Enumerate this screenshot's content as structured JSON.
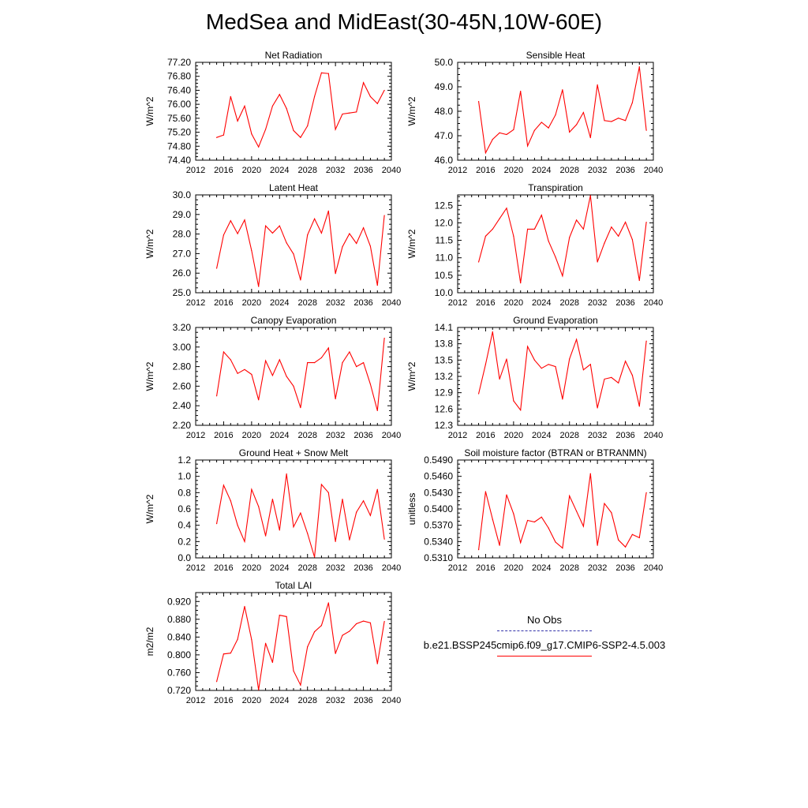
{
  "title": "MedSea and MidEast(30-45N,10W-60E)",
  "colors": {
    "model": "#ff0000",
    "obs": "#3333aa",
    "axis": "#000000"
  },
  "legend": {
    "obs_label": "No Obs",
    "model_label": "b.e21.BSSP245cmip6.f09_g17.CMIP6-SSP2-4.5.003"
  },
  "chart_data": [
    {
      "type": "line",
      "title": "Net Radiation",
      "ylabel": "W/m^2",
      "xlim": [
        2012,
        2040
      ],
      "ylim": [
        74.4,
        77.2
      ],
      "x_ticks": [
        "2012",
        "2016",
        "2020",
        "2024",
        "2028",
        "2032",
        "2036",
        "2040"
      ],
      "y_ticks": [
        "74.40",
        "74.80",
        "75.20",
        "75.60",
        "76.00",
        "76.40",
        "76.80",
        "77.20"
      ],
      "x": [
        2015,
        2016,
        2017,
        2018,
        2019,
        2020,
        2021,
        2022,
        2023,
        2024,
        2025,
        2026,
        2027,
        2028,
        2029,
        2030,
        2031,
        2032,
        2033,
        2034,
        2035,
        2036,
        2037,
        2038,
        2039
      ],
      "values": [
        75.05,
        75.12,
        76.22,
        75.52,
        75.95,
        75.15,
        74.78,
        75.28,
        75.95,
        76.28,
        75.88,
        75.25,
        75.05,
        75.38,
        76.22,
        76.9,
        76.88,
        75.28,
        75.72,
        75.75,
        75.78,
        76.62,
        76.22,
        76.02,
        76.4
      ]
    },
    {
      "type": "line",
      "title": "Sensible Heat",
      "ylabel": "W/m^2",
      "xlim": [
        2012,
        2040
      ],
      "ylim": [
        46.0,
        50.0
      ],
      "x_ticks": [
        "2012",
        "2016",
        "2020",
        "2024",
        "2028",
        "2032",
        "2036",
        "2040"
      ],
      "y_ticks": [
        "46.0",
        "47.0",
        "48.0",
        "49.0",
        "50.0"
      ],
      "x": [
        2015,
        2016,
        2017,
        2018,
        2019,
        2020,
        2021,
        2022,
        2023,
        2024,
        2025,
        2026,
        2027,
        2028,
        2029,
        2030,
        2031,
        2032,
        2033,
        2034,
        2035,
        2036,
        2037,
        2038,
        2039
      ],
      "values": [
        48.4,
        46.3,
        46.85,
        47.12,
        47.05,
        47.25,
        48.82,
        46.58,
        47.22,
        47.55,
        47.32,
        47.85,
        48.88,
        47.15,
        47.45,
        47.95,
        46.92,
        49.08,
        47.62,
        47.58,
        47.72,
        47.62,
        48.35,
        49.82,
        47.22
      ]
    },
    {
      "type": "line",
      "title": "Latent Heat",
      "ylabel": "W/m^2",
      "xlim": [
        2012,
        2040
      ],
      "ylim": [
        25.0,
        30.0
      ],
      "x_ticks": [
        "2012",
        "2016",
        "2020",
        "2024",
        "2028",
        "2032",
        "2036",
        "2040"
      ],
      "y_ticks": [
        "25.0",
        "26.0",
        "27.0",
        "28.0",
        "29.0",
        "30.0"
      ],
      "x": [
        2015,
        2016,
        2017,
        2018,
        2019,
        2020,
        2021,
        2022,
        2023,
        2024,
        2025,
        2026,
        2027,
        2028,
        2029,
        2030,
        2031,
        2032,
        2033,
        2034,
        2035,
        2036,
        2037,
        2038,
        2039
      ],
      "values": [
        26.25,
        27.95,
        28.68,
        28.02,
        28.72,
        27.15,
        25.32,
        28.42,
        28.05,
        28.42,
        27.55,
        26.98,
        25.65,
        27.95,
        28.78,
        28.05,
        29.18,
        25.98,
        27.35,
        28.02,
        27.52,
        28.32,
        27.38,
        25.38,
        28.95
      ]
    },
    {
      "type": "line",
      "title": "Transpiration",
      "ylabel": "W/m^2",
      "xlim": [
        2012,
        2040
      ],
      "ylim": [
        10.0,
        12.8
      ],
      "x_ticks": [
        "2012",
        "2016",
        "2020",
        "2024",
        "2028",
        "2032",
        "2036",
        "2040"
      ],
      "y_ticks": [
        "10.0",
        "10.5",
        "11.0",
        "11.5",
        "12.0",
        "12.5"
      ],
      "x": [
        2015,
        2016,
        2017,
        2018,
        2019,
        2020,
        2021,
        2022,
        2023,
        2024,
        2025,
        2026,
        2027,
        2028,
        2029,
        2030,
        2031,
        2032,
        2033,
        2034,
        2035,
        2036,
        2037,
        2038,
        2039
      ],
      "values": [
        10.88,
        11.62,
        11.82,
        12.12,
        12.42,
        11.62,
        10.28,
        11.82,
        11.82,
        12.22,
        11.48,
        11.02,
        10.48,
        11.58,
        12.08,
        11.82,
        12.78,
        10.88,
        11.42,
        11.88,
        11.62,
        12.02,
        11.52,
        10.35,
        12.02
      ]
    },
    {
      "type": "line",
      "title": "Canopy Evaporation",
      "ylabel": "W/m^2",
      "xlim": [
        2012,
        2040
      ],
      "ylim": [
        2.2,
        3.2
      ],
      "x_ticks": [
        "2012",
        "2016",
        "2020",
        "2024",
        "2028",
        "2032",
        "2036",
        "2040"
      ],
      "y_ticks": [
        "2.20",
        "2.40",
        "2.60",
        "2.80",
        "3.00",
        "3.20"
      ],
      "x": [
        2015,
        2016,
        2017,
        2018,
        2019,
        2020,
        2021,
        2022,
        2023,
        2024,
        2025,
        2026,
        2027,
        2028,
        2029,
        2030,
        2031,
        2032,
        2033,
        2034,
        2035,
        2036,
        2037,
        2038,
        2039
      ],
      "values": [
        2.5,
        2.95,
        2.87,
        2.73,
        2.77,
        2.72,
        2.46,
        2.86,
        2.71,
        2.87,
        2.7,
        2.6,
        2.38,
        2.84,
        2.84,
        2.89,
        2.99,
        2.47,
        2.84,
        2.95,
        2.8,
        2.84,
        2.62,
        2.35,
        3.09
      ]
    },
    {
      "type": "line",
      "title": "Ground Evaporation",
      "ylabel": "W/m^2",
      "xlim": [
        2012,
        2040
      ],
      "ylim": [
        12.3,
        14.1
      ],
      "x_ticks": [
        "2012",
        "2016",
        "2020",
        "2024",
        "2028",
        "2032",
        "2036",
        "2040"
      ],
      "y_ticks": [
        "12.3",
        "12.6",
        "12.9",
        "13.2",
        "13.5",
        "13.8",
        "14.1"
      ],
      "x": [
        2015,
        2016,
        2017,
        2018,
        2019,
        2020,
        2021,
        2022,
        2023,
        2024,
        2025,
        2026,
        2027,
        2028,
        2029,
        2030,
        2031,
        2032,
        2033,
        2034,
        2035,
        2036,
        2037,
        2038,
        2039
      ],
      "values": [
        12.88,
        13.42,
        14.02,
        13.15,
        13.52,
        12.75,
        12.58,
        13.75,
        13.5,
        13.35,
        13.42,
        13.38,
        12.78,
        13.52,
        13.88,
        13.32,
        13.42,
        12.62,
        13.15,
        13.18,
        13.08,
        13.48,
        13.22,
        12.65,
        13.85
      ]
    },
    {
      "type": "line",
      "title": "Ground Heat + Snow Melt",
      "ylabel": "W/m^2",
      "xlim": [
        2012,
        2040
      ],
      "ylim": [
        0.0,
        1.2
      ],
      "x_ticks": [
        "2012",
        "2016",
        "2020",
        "2024",
        "2028",
        "2032",
        "2036",
        "2040"
      ],
      "y_ticks": [
        "0.0",
        "0.2",
        "0.4",
        "0.6",
        "0.8",
        "1.0",
        "1.2"
      ],
      "x": [
        2015,
        2016,
        2017,
        2018,
        2019,
        2020,
        2021,
        2022,
        2023,
        2024,
        2025,
        2026,
        2027,
        2028,
        2029,
        2030,
        2031,
        2032,
        2033,
        2034,
        2035,
        2036,
        2037,
        2038,
        2039
      ],
      "values": [
        0.42,
        0.89,
        0.7,
        0.4,
        0.2,
        0.84,
        0.63,
        0.27,
        0.72,
        0.34,
        1.03,
        0.38,
        0.55,
        0.3,
        0.01,
        0.9,
        0.8,
        0.2,
        0.72,
        0.22,
        0.56,
        0.7,
        0.52,
        0.84,
        0.23
      ]
    },
    {
      "type": "line",
      "title": "Soil moisture factor (BTRAN or BTRANMN)",
      "ylabel": "unitless",
      "xlim": [
        2012,
        2040
      ],
      "ylim": [
        0.531,
        0.549
      ],
      "x_ticks": [
        "2012",
        "2016",
        "2020",
        "2024",
        "2028",
        "2032",
        "2036",
        "2040"
      ],
      "y_ticks": [
        "0.5310",
        "0.5340",
        "0.5370",
        "0.5400",
        "0.5430",
        "0.5460",
        "0.5490"
      ],
      "x": [
        2015,
        2016,
        2017,
        2018,
        2019,
        2020,
        2021,
        2022,
        2023,
        2024,
        2025,
        2026,
        2027,
        2028,
        2029,
        2030,
        2031,
        2032,
        2033,
        2034,
        2035,
        2036,
        2037,
        2038,
        2039
      ],
      "values": [
        0.5325,
        0.5432,
        0.5381,
        0.5333,
        0.5426,
        0.5391,
        0.5338,
        0.5379,
        0.5376,
        0.5385,
        0.5365,
        0.5339,
        0.5328,
        0.5424,
        0.5396,
        0.5368,
        0.5465,
        0.5333,
        0.541,
        0.5393,
        0.5343,
        0.533,
        0.5353,
        0.5347,
        0.543
      ]
    },
    {
      "type": "line",
      "title": "Total LAI",
      "ylabel": "m2/m2",
      "xlim": [
        2012,
        2040
      ],
      "ylim": [
        0.72,
        0.94
      ],
      "x_ticks": [
        "2012",
        "2016",
        "2020",
        "2024",
        "2028",
        "2032",
        "2036",
        "2040"
      ],
      "y_ticks": [
        "0.720",
        "0.760",
        "0.800",
        "0.840",
        "0.880",
        "0.920"
      ],
      "x": [
        2015,
        2016,
        2017,
        2018,
        2019,
        2020,
        2021,
        2022,
        2023,
        2024,
        2025,
        2026,
        2027,
        2028,
        2029,
        2030,
        2031,
        2032,
        2033,
        2034,
        2035,
        2036,
        2037,
        2038,
        2039
      ],
      "values": [
        0.74,
        0.802,
        0.804,
        0.835,
        0.909,
        0.834,
        0.721,
        0.826,
        0.783,
        0.889,
        0.886,
        0.764,
        0.732,
        0.818,
        0.852,
        0.866,
        0.917,
        0.803,
        0.844,
        0.853,
        0.87,
        0.876,
        0.872,
        0.78,
        0.875
      ]
    }
  ]
}
